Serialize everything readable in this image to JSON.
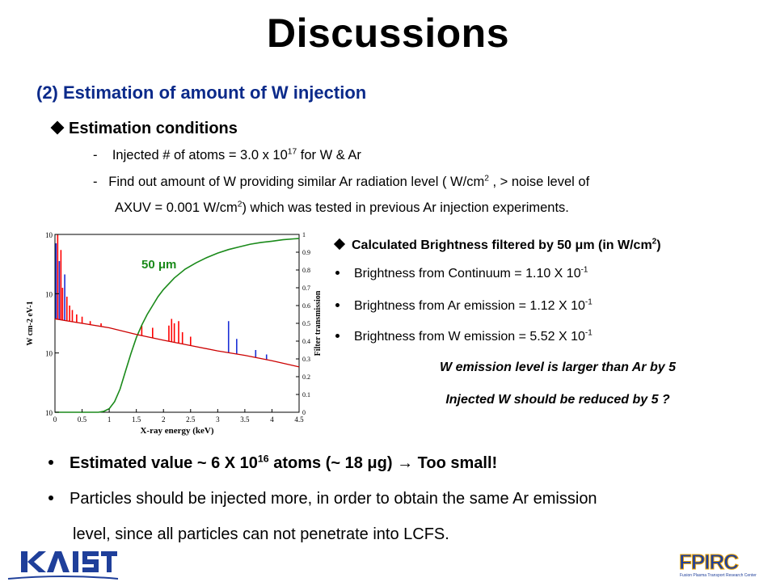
{
  "title": "Discussions",
  "subtitle": "(2) Estimation of amount of W injection",
  "conditions": {
    "heading": "Estimation conditions",
    "line1": {
      "dash": "-",
      "prefix": "Injected # of atoms = 3.0 x 10",
      "exp": "17",
      "suffix": " for W & Ar"
    },
    "line2": {
      "dash": "-",
      "text_a": "Find out amount of W providing similar Ar radiation level ( W/cm",
      "exp_a": "2",
      "text_b": " , > noise level of"
    },
    "line3": {
      "text_a": "AXUV = 0.001 W/cm",
      "exp_a": "2",
      "text_b": ")  which was tested in previous Ar injection experiments."
    }
  },
  "brightness": {
    "heading_a": "Calculated Brightness filtered by 50 ",
    "heading_mu": "μ",
    "heading_b": "m (in W/cm",
    "heading_exp": "2",
    "heading_c": ")",
    "items": [
      {
        "text": "Brightness from Continuum   =  1.10 X 10",
        "exp": "-1"
      },
      {
        "text": "Brightness from Ar emission  =  1.12 X 10",
        "exp": "-1"
      },
      {
        "text": "Brightness from W emission  =  5.52 X 10",
        "exp": "-1"
      }
    ],
    "conclusion1": "W emission level is larger than Ar by 5",
    "conclusion2": "Injected W should be reduced by 5 ?"
  },
  "bottom": {
    "item1": {
      "a": "Estimated value ~  6 X 10",
      "exp": "16",
      "b": " atoms (~ 18 ",
      "mu": "μ",
      "c": "g)  ",
      "arrow": "→",
      "d": " Too small!"
    },
    "item2_line1": "Particles should be injected more, in order to obtain the same Ar emission",
    "item2_line2": "level, since all particles can not penetrate into LCFS."
  },
  "logos": {
    "left": "KAIST",
    "right": "FPIRC",
    "right_tagline": "Fusion Plasma Transport Research Center"
  },
  "chart_data": {
    "type": "line",
    "annotation": "50 μm",
    "xlabel": "X-ray energy (keV)",
    "ylabel_left": "W cm-2 eV-1",
    "ylabel_right": "Filter transmission",
    "x_ticks": [
      "0",
      "0.5",
      "1",
      "1.5",
      "2",
      "2.5",
      "3",
      "3.5",
      "4",
      "4.5"
    ],
    "y_right_ticks": [
      "0",
      "0.1",
      "0.2",
      "0.3",
      "0.4",
      "0.5",
      "0.6",
      "0.7",
      "0.8",
      "0.9",
      "1"
    ],
    "y_left_ticks": [
      "10",
      "10",
      "10",
      "10"
    ],
    "xlim": [
      0,
      4.5
    ],
    "ylim_right": [
      0,
      1
    ],
    "ylim_left_log": [
      -10,
      -6
    ],
    "colors": {
      "filter": "#1a8a1a",
      "continuum": "#cc0000",
      "w_lines": "#1a2fd6",
      "ar_lines": "#ff0000"
    },
    "series": [
      {
        "name": "filter",
        "x": [
          0,
          0.6,
          0.8,
          0.9,
          1.0,
          1.1,
          1.2,
          1.3,
          1.4,
          1.5,
          1.6,
          1.7,
          1.8,
          1.9,
          2.0,
          2.2,
          2.4,
          2.6,
          2.8,
          3.0,
          3.2,
          3.4,
          3.6,
          3.8,
          4.0,
          4.2,
          4.4,
          4.5
        ],
        "values": [
          0,
          0,
          0,
          0.005,
          0.02,
          0.06,
          0.13,
          0.23,
          0.33,
          0.42,
          0.49,
          0.55,
          0.6,
          0.65,
          0.69,
          0.755,
          0.805,
          0.84,
          0.87,
          0.895,
          0.915,
          0.93,
          0.945,
          0.955,
          0.962,
          0.97,
          0.975,
          0.977
        ]
      },
      {
        "name": "continuum",
        "x": [
          0,
          0.5,
          1.0,
          1.5,
          2.0,
          2.5,
          3.0,
          3.5,
          4.0,
          4.5
        ],
        "values": [
          -7.9,
          -8.0,
          -8.1,
          -8.25,
          -8.38,
          -8.5,
          -8.62,
          -8.72,
          -8.84,
          -8.98
        ]
      }
    ],
    "lines": [
      {
        "x": 0.02,
        "top": -6.2,
        "kind": "w"
      },
      {
        "x": 0.05,
        "top": -6.0,
        "kind": "ar"
      },
      {
        "x": 0.08,
        "top": -6.6,
        "kind": "w"
      },
      {
        "x": 0.11,
        "top": -6.35,
        "kind": "ar"
      },
      {
        "x": 0.14,
        "top": -7.2,
        "kind": "ar"
      },
      {
        "x": 0.18,
        "top": -6.9,
        "kind": "w"
      },
      {
        "x": 0.22,
        "top": -7.4,
        "kind": "ar"
      },
      {
        "x": 0.27,
        "top": -7.6,
        "kind": "ar"
      },
      {
        "x": 0.32,
        "top": -7.7,
        "kind": "ar"
      },
      {
        "x": 0.4,
        "top": -7.8,
        "kind": "ar"
      },
      {
        "x": 0.5,
        "top": -7.85,
        "kind": "ar"
      },
      {
        "x": 0.65,
        "top": -7.95,
        "kind": "ar"
      },
      {
        "x": 0.85,
        "top": -8.0,
        "kind": "ar"
      },
      {
        "x": 1.6,
        "top": -8.05,
        "kind": "ar"
      },
      {
        "x": 1.8,
        "top": -8.1,
        "kind": "ar"
      },
      {
        "x": 2.1,
        "top": -8.05,
        "kind": "ar"
      },
      {
        "x": 2.15,
        "top": -7.9,
        "kind": "ar"
      },
      {
        "x": 2.2,
        "top": -8.0,
        "kind": "ar"
      },
      {
        "x": 2.28,
        "top": -7.95,
        "kind": "ar"
      },
      {
        "x": 2.35,
        "top": -8.2,
        "kind": "ar"
      },
      {
        "x": 2.5,
        "top": -8.3,
        "kind": "ar"
      },
      {
        "x": 3.2,
        "top": -7.95,
        "kind": "w"
      },
      {
        "x": 3.35,
        "top": -8.35,
        "kind": "w"
      },
      {
        "x": 3.7,
        "top": -8.6,
        "kind": "w"
      },
      {
        "x": 3.9,
        "top": -8.7,
        "kind": "w"
      }
    ]
  }
}
